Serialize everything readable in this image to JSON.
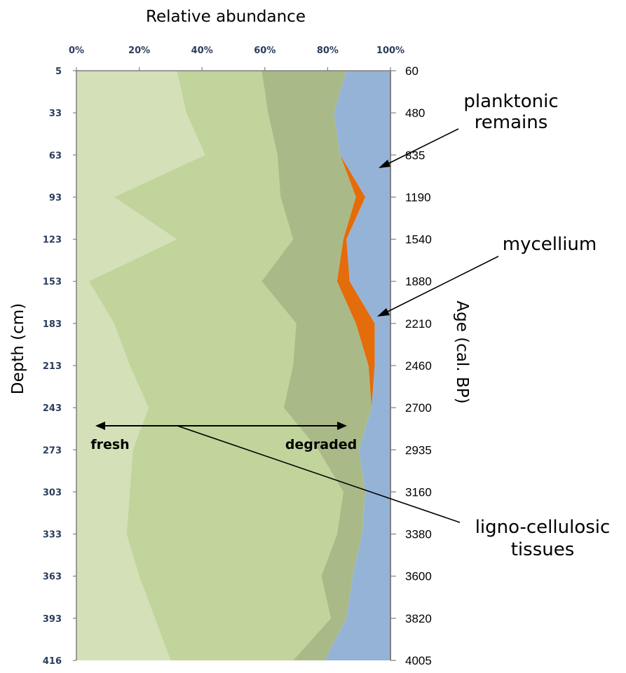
{
  "chart_data": {
    "type": "area",
    "orientation": "vertical-stacked-100-percent",
    "xlabel": "Relative abundance",
    "ylabel": "Depth (cm)",
    "y2label": "Age (cal. BP)",
    "x_ticks": [
      "0%",
      "20%",
      "40%",
      "60%",
      "80%",
      "100%"
    ],
    "xlim": [
      0,
      100
    ],
    "depth": [
      5,
      33,
      63,
      93,
      123,
      153,
      183,
      213,
      243,
      273,
      303,
      333,
      363,
      393,
      416
    ],
    "age": [
      60,
      480,
      835,
      1190,
      1540,
      1880,
      2210,
      2460,
      2700,
      2935,
      3160,
      3380,
      3600,
      3820,
      4005
    ],
    "series": [
      {
        "color": "#d3e0b8",
        "values": [
          32,
          35,
          41,
          12,
          32,
          4,
          12,
          17,
          23,
          18,
          17,
          16,
          20,
          25,
          30
        ]
      },
      {
        "color": "#c1d49b",
        "values": [
          27,
          26,
          23,
          53,
          37,
          55,
          58,
          52,
          43,
          59,
          68,
          67,
          58,
          56,
          39
        ]
      },
      {
        "color": "#a9ba88",
        "values": [
          27,
          21,
          20,
          24,
          16,
          24,
          19,
          24,
          28,
          13,
          7,
          8,
          10,
          5,
          10
        ]
      },
      {
        "color": "#e46c0a",
        "values": [
          0,
          0,
          0,
          3,
          1,
          4,
          6,
          2,
          0,
          0,
          0,
          0,
          0,
          0,
          0
        ]
      },
      {
        "color": "#95b3d7",
        "values": [
          14,
          18,
          16,
          8,
          14,
          13,
          5,
          5,
          6,
          10,
          8,
          9,
          12,
          14,
          21
        ]
      }
    ],
    "annotations": [
      {
        "line1": "planktonic",
        "line2": "remains"
      },
      {
        "line1": "mycellium",
        "line2": ""
      },
      {
        "line1": "ligno-cellulosic",
        "line2": "tissues"
      },
      {
        "line1": "fresh",
        "line2": ""
      },
      {
        "line1": "degraded",
        "line2": ""
      }
    ]
  }
}
